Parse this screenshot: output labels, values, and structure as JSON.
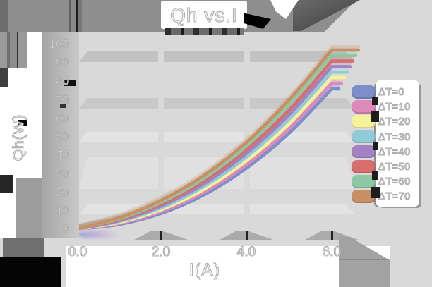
{
  "title": "Qh vs.I",
  "axes": {
    "x": {
      "label": "I(A)",
      "tick_labels": [
        "0.0",
        "2.0",
        "4.0",
        "6.0"
      ],
      "tick_values": [
        0,
        2,
        4,
        6
      ]
    },
    "y": {
      "label": "Qh(W)",
      "tick_labels": [
        "0",
        "10",
        "20",
        "30",
        "40",
        "50",
        "60",
        "70",
        "80",
        "90",
        "100"
      ],
      "tick_values": [
        0,
        10,
        20,
        30,
        40,
        50,
        60,
        70,
        80,
        90,
        100
      ]
    }
  },
  "legend": {
    "items": [
      {
        "label": "ΔT=0",
        "color": "#7d8ec8"
      },
      {
        "label": "ΔT=10",
        "color": "#dd8abb"
      },
      {
        "label": "ΔT=20",
        "color": "#f6f29c"
      },
      {
        "label": "ΔT=30",
        "color": "#92cbd8"
      },
      {
        "label": "ΔT=40",
        "color": "#a282c2"
      },
      {
        "label": "ΔT=50",
        "color": "#d66e6e"
      },
      {
        "label": "ΔT=60",
        "color": "#8ec7a3"
      },
      {
        "label": "ΔT=70",
        "color": "#c78f63"
      }
    ]
  },
  "chart_data": {
    "type": "line",
    "title": "Qh vs.I",
    "xlabel": "I(A)",
    "ylabel": "Qh(W)",
    "xlim": [
      0,
      6.6
    ],
    "ylim": [
      0,
      100
    ],
    "x_ticks": [
      0,
      2,
      4,
      6
    ],
    "y_ticks": [
      0,
      10,
      20,
      30,
      40,
      50,
      60,
      70,
      80,
      90,
      100
    ],
    "grid": true,
    "legend_position": "right",
    "x": [
      0,
      1,
      2,
      3,
      4,
      5,
      6
    ],
    "series": [
      {
        "name": "ΔT=0",
        "color": "#7d8ec8",
        "values": [
          0,
          2.5,
          8.5,
          18.5,
          33,
          52,
          76
        ]
      },
      {
        "name": "ΔT=10",
        "color": "#dd8abb",
        "values": [
          0,
          3,
          9.5,
          20,
          35,
          54.5,
          79
        ]
      },
      {
        "name": "ΔT=20",
        "color": "#f6f29c",
        "values": [
          0,
          3.5,
          10.5,
          21.5,
          37,
          57,
          82
        ]
      },
      {
        "name": "ΔT=30",
        "color": "#92cbd8",
        "values": [
          0,
          4,
          11.5,
          23,
          39,
          59.5,
          85
        ]
      },
      {
        "name": "ΔT=40",
        "color": "#a282c2",
        "values": [
          0,
          4.5,
          12.5,
          24.5,
          41,
          62,
          88
        ]
      },
      {
        "name": "ΔT=50",
        "color": "#d66e6e",
        "values": [
          0,
          5,
          13.5,
          26,
          43,
          64.5,
          91
        ]
      },
      {
        "name": "ΔT=60",
        "color": "#8ec7a3",
        "values": [
          0,
          5.5,
          14.5,
          27.5,
          45,
          67.5,
          94
        ]
      },
      {
        "name": "ΔT=70",
        "color": "#c78f63",
        "values": [
          0,
          6,
          15.5,
          29,
          47,
          70,
          97
        ]
      }
    ]
  }
}
